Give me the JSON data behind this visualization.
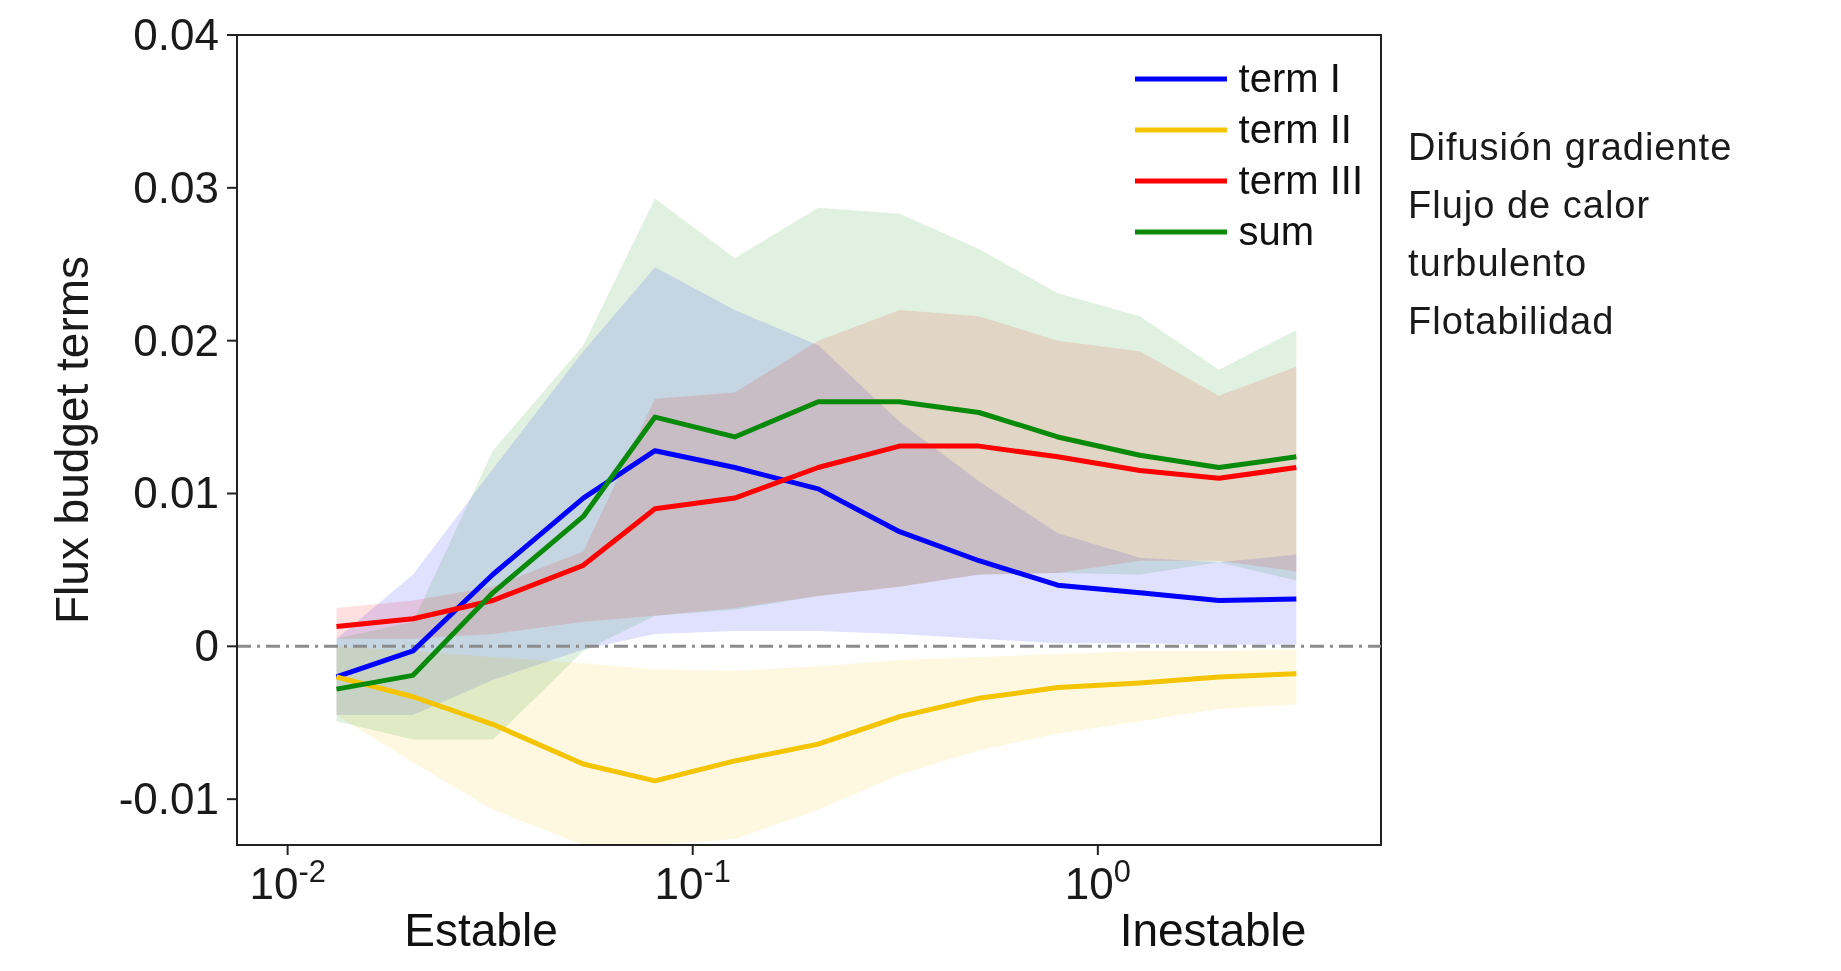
{
  "chart_data": {
    "type": "line",
    "ylabel": "Flux budget terms",
    "x": [
      0.0132,
      0.0204,
      0.0321,
      0.0537,
      0.0807,
      0.127,
      0.204,
      0.324,
      0.509,
      0.796,
      1.27,
      1.99,
      3.09
    ],
    "series": [
      {
        "name": "term I",
        "color": "#0000ff",
        "values": [
          -0.002,
          -0.0003,
          0.0047,
          0.0097,
          0.0128,
          0.0117,
          0.0103,
          0.0075,
          0.0056,
          0.004,
          0.0035,
          0.003,
          0.0031
        ],
        "lower": [
          -0.0045,
          -0.0045,
          -0.0022,
          -0.0002,
          0.0008,
          0.001,
          0.001,
          0.0008,
          0.0005,
          0.0002,
          0.0002,
          0.0001,
          0.0001
        ],
        "upper": [
          0.0005,
          0.0047,
          0.0116,
          0.0193,
          0.0248,
          0.022,
          0.0197,
          0.0147,
          0.0108,
          0.0074,
          0.0058,
          0.0055,
          0.006
        ]
      },
      {
        "name": "term II",
        "color": "#f5c400",
        "values": [
          -0.002,
          -0.0033,
          -0.0051,
          -0.0077,
          -0.0088,
          -0.0075,
          -0.0064,
          -0.0046,
          -0.0034,
          -0.0027,
          -0.0024,
          -0.002,
          -0.0018
        ],
        "lower": [
          -0.0045,
          -0.0076,
          -0.0107,
          -0.013,
          -0.013,
          -0.0126,
          -0.0107,
          -0.0084,
          -0.0068,
          -0.0057,
          -0.0049,
          -0.0041,
          -0.0038
        ],
        "upper": [
          0,
          -0.0003,
          -0.0007,
          -0.0011,
          -0.0015,
          -0.0016,
          -0.0013,
          -0.0009,
          -0.0007,
          -0.0005,
          -0.0003,
          -0.0003,
          -0.0002
        ]
      },
      {
        "name": "term III",
        "color": "#ff0000",
        "values": [
          0.0013,
          0.0018,
          0.003,
          0.0053,
          0.009,
          0.0097,
          0.0117,
          0.0131,
          0.0131,
          0.0124,
          0.0115,
          0.011,
          0.0117
        ],
        "lower": [
          0.0005,
          0.0005,
          0.0008,
          0.0016,
          0.002,
          0.0025,
          0.0033,
          0.0039,
          0.0047,
          0.0048,
          0.0056,
          0.0056,
          0.0049
        ],
        "upper": [
          0.0025,
          0.003,
          0.0039,
          0.0062,
          0.0162,
          0.0166,
          0.02,
          0.022,
          0.0216,
          0.02,
          0.0193,
          0.0164,
          0.0183
        ]
      },
      {
        "name": "sum",
        "color": "#0a8a0a",
        "values": [
          -0.0028,
          -0.0019,
          0.0035,
          0.0085,
          0.015,
          0.0137,
          0.016,
          0.016,
          0.0153,
          0.0137,
          0.0125,
          0.0117,
          0.0124
        ],
        "lower": [
          -0.0049,
          -0.0061,
          -0.0061,
          -0.0003,
          0.002,
          0.0024,
          0.0033,
          0.0039,
          0.0047,
          0.0048,
          0.0047,
          0.0055,
          0.0043
        ],
        "upper": [
          0.0005,
          0.0016,
          0.0128,
          0.0197,
          0.0293,
          0.0254,
          0.0287,
          0.0283,
          0.026,
          0.0231,
          0.0216,
          0.0181,
          0.0207
        ]
      }
    ],
    "log": "x",
    "xlim": [
      0.0075,
      5
    ],
    "xticks": [
      {
        "value": 0.01,
        "label": "10$^{-2}$"
      },
      {
        "value": 0.1,
        "label": "10$^{-1}$"
      },
      {
        "value": 1,
        "label": "10$^{0}$"
      }
    ],
    "ylim": [
      -0.013,
      0.04
    ],
    "yticks": [
      -0.01,
      0,
      0.01,
      0.02,
      0.03,
      0.04
    ],
    "ref_lines": [
      {
        "axis": "y",
        "value": 0,
        "color": "#8c8c8c",
        "line_style": "dashdot"
      }
    ],
    "legend": "top right",
    "grid": false,
    "marker": "none",
    "line_style": "solid",
    "annotations": [
      "Difusión gradiente",
      "Flujo de calor turbulento",
      "Flotabilidad",
      "Estable",
      "Inestable"
    ]
  }
}
